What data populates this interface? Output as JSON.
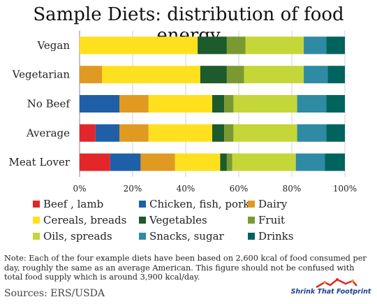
{
  "chart_data": {
    "type": "bar",
    "orientation": "horizontal",
    "stacked": true,
    "title": "Sample Diets: distribution of food energy",
    "categories": [
      "Vegan",
      "Vegetarian",
      "No Beef",
      "Average",
      "Meat Lover"
    ],
    "series": [
      {
        "name": "Beef , lamb",
        "color": "#e3262a",
        "values": [
          0,
          0,
          0,
          6,
          11.5
        ]
      },
      {
        "name": "Chicken, fish, pork",
        "color": "#1f5fa8",
        "values": [
          0,
          0,
          15,
          9,
          11.5
        ]
      },
      {
        "name": "Dairy",
        "color": "#e09a21",
        "values": [
          0,
          8.5,
          11,
          11,
          13
        ]
      },
      {
        "name": "Cereals, breads",
        "color": "#ffe01e",
        "values": [
          44.5,
          37,
          24,
          24,
          17
        ]
      },
      {
        "name": "Vegetables",
        "color": "#1d5a2c",
        "values": [
          11,
          10,
          4.5,
          4.5,
          2.5
        ]
      },
      {
        "name": "Fruit",
        "color": "#7a9a31",
        "values": [
          7,
          6.5,
          3.5,
          3.5,
          2
        ]
      },
      {
        "name": "Oils, spreads",
        "color": "#c5d638",
        "values": [
          22,
          22.5,
          24,
          24,
          24
        ]
      },
      {
        "name": "Snacks, sugar",
        "color": "#2f8aa4",
        "values": [
          8.5,
          9,
          11,
          11,
          11
        ]
      },
      {
        "name": "Drinks",
        "color": "#00635e",
        "values": [
          7,
          6.5,
          7,
          7,
          7.5
        ]
      }
    ],
    "xlim": [
      0,
      100
    ],
    "xticks": [
      "0%",
      "20%",
      "40%",
      "60%",
      "80%",
      "100%"
    ],
    "xlabel": "",
    "ylabel": "",
    "grid": true,
    "legend": "bottom"
  },
  "note": "Note: Each of the four example diets have been based on 2,600 kcal of food consumed per day, roughly the same as an average American.  This figure should not be confused with total food supply which is around 3,900 kcal/day.",
  "sources": "Sources:  ERS/USDA",
  "logo_text": "Shrink That Footprint"
}
